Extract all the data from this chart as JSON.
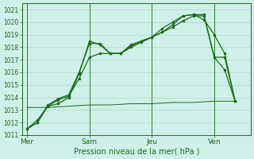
{
  "xlabel": "Pression niveau de la mer( hPa )",
  "bg_color": "#cff0e8",
  "grid_color": "#aad8cc",
  "line_color": "#1a6b1a",
  "ylim": [
    1011,
    1021.5
  ],
  "yticks": [
    1011,
    1012,
    1013,
    1014,
    1015,
    1016,
    1017,
    1018,
    1019,
    1020,
    1021
  ],
  "xtick_labels": [
    "Mer",
    "Sam",
    "Jeu",
    "Ven"
  ],
  "xtick_pos": [
    0,
    12,
    24,
    36
  ],
  "total_points": 42,
  "series1_x": [
    0,
    2,
    4,
    6,
    8,
    10,
    12,
    14,
    16,
    18,
    20,
    22,
    24,
    26,
    28,
    30,
    32,
    34,
    36,
    38,
    40
  ],
  "series1_y": [
    1011.5,
    1012.2,
    1013.3,
    1013.5,
    1014.0,
    1015.9,
    1018.5,
    1018.2,
    1017.5,
    1017.5,
    1018.0,
    1018.4,
    1018.8,
    1019.2,
    1019.6,
    1020.1,
    1020.5,
    1020.5,
    1017.2,
    1016.2,
    1013.7
  ],
  "series2_x": [
    0,
    2,
    4,
    6,
    8,
    10,
    12,
    14,
    16,
    18,
    20,
    22,
    24,
    26,
    28,
    30,
    32,
    34,
    36,
    38,
    40
  ],
  "series2_y": [
    1011.5,
    1012.0,
    1013.4,
    1013.9,
    1014.2,
    1016.0,
    1018.3,
    1018.3,
    1017.5,
    1017.5,
    1018.1,
    1018.5,
    1018.8,
    1019.5,
    1020.0,
    1020.5,
    1020.6,
    1020.6,
    1017.2,
    1017.2,
    1013.7
  ],
  "series3_x": [
    0,
    2,
    4,
    6,
    8,
    10,
    12,
    14,
    16,
    18,
    20,
    22,
    24,
    26,
    28,
    30,
    32,
    34,
    36,
    38,
    40
  ],
  "series3_y": [
    1011.5,
    1012.0,
    1013.3,
    1013.8,
    1014.1,
    1015.5,
    1017.2,
    1017.5,
    1017.5,
    1017.5,
    1018.2,
    1018.5,
    1018.8,
    1019.2,
    1019.8,
    1020.5,
    1020.6,
    1020.2,
    1019.0,
    1017.5,
    1013.7
  ],
  "flat_x": [
    0,
    4,
    8,
    12,
    16,
    20,
    24,
    28,
    32,
    36,
    40
  ],
  "flat_y": [
    1013.2,
    1013.2,
    1013.3,
    1013.4,
    1013.4,
    1013.5,
    1013.5,
    1013.6,
    1013.6,
    1013.7,
    1013.7
  ],
  "vline_pos": [
    0,
    12,
    24,
    36
  ],
  "xlabel_fontsize": 7,
  "ytick_fontsize": 5.5,
  "xtick_fontsize": 6.5,
  "linewidth": 0.9,
  "markersize": 2.2
}
